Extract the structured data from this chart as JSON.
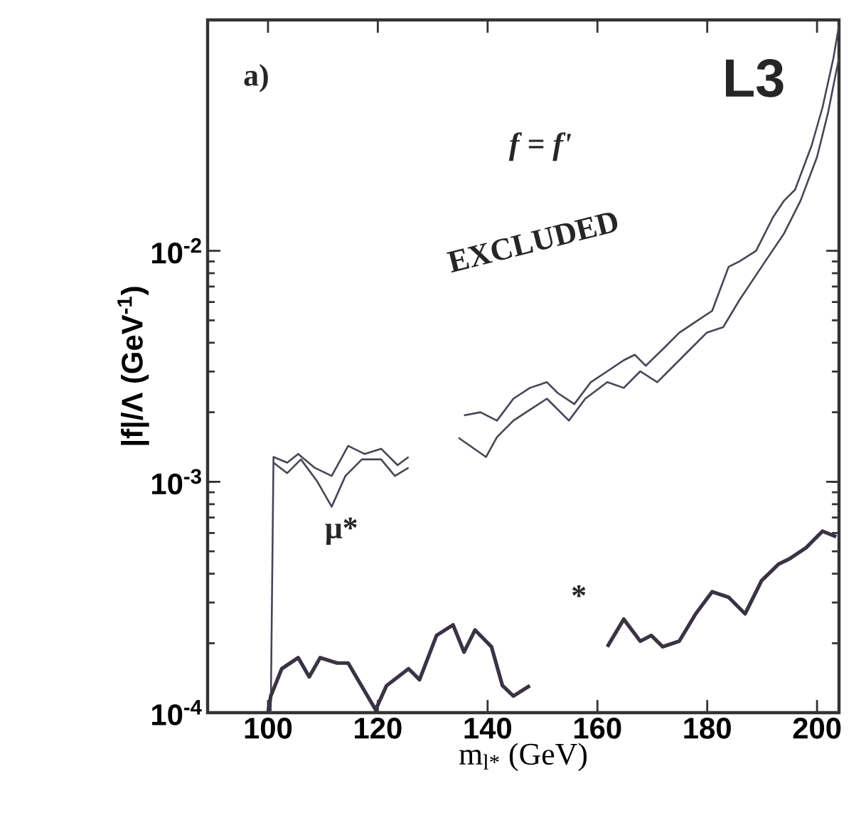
{
  "chart_data": {
    "type": "line",
    "xlabel": "m$_{l*}$ (GeV)",
    "ylabel": "|f|/Λ (GeV$^{-1}$)",
    "log": "y",
    "xlim": [
      89,
      204
    ],
    "xticks": [
      100,
      120,
      140,
      160,
      180,
      200
    ],
    "ylim": [
      0.0001,
      0.1
    ],
    "yticks": [
      {
        "value": 0.0001,
        "label": "10$^{-4}$"
      },
      {
        "value": 0.001,
        "label": "10$^{-3}$"
      },
      {
        "value": 0.01,
        "label": "10$^{-2}$"
      }
    ],
    "annotations": [
      "a)",
      "L3",
      "f = f'",
      "EXCLUDED",
      "μ*",
      "*"
    ],
    "series": [
      {
        "color": "#4a4456",
        "x": [
          100.5,
          101.0,
          103.5,
          105.5,
          108.5,
          111.6,
          114.6,
          117.6,
          120.6,
          123.6,
          125.6,
          130,
          135.7,
          138.7,
          141.7,
          144.7,
          147.7,
          150.8,
          152.8,
          155.8,
          158.8,
          161.8,
          164.8,
          166.8,
          168.8,
          171.9,
          174.9,
          177.9,
          180.9,
          183.9,
          185.9,
          188.9,
          192.0,
          194.0,
          196.0,
          199.0,
          201.0,
          203.0,
          204.0
        ],
        "values": [
          0.0001,
          0.00128,
          0.00121,
          0.00132,
          0.00115,
          0.00106,
          0.00143,
          0.00132,
          0.00139,
          0.00118,
          0.00128,
          null,
          0.00194,
          0.002,
          0.00184,
          0.00229,
          0.00255,
          0.0027,
          0.00242,
          0.00217,
          0.0027,
          0.00301,
          0.00336,
          0.00355,
          0.00318,
          0.00375,
          0.00442,
          0.00493,
          0.0055,
          0.00853,
          0.00901,
          0.01,
          0.014,
          0.0165,
          0.0184,
          0.0285,
          0.0418,
          0.0686,
          0.095
        ]
      },
      {
        "color": "#4a4456",
        "x": [
          101.0,
          103.5,
          106.0,
          109.0,
          111.6,
          114.1,
          117.1,
          120.6,
          123.1,
          125.6,
          130,
          134.7,
          139.7,
          141.7,
          144.7,
          147.7,
          150.8,
          154.8,
          157.8,
          161.8,
          164.8,
          167.8,
          170.9,
          173.9,
          176.9,
          179.9,
          182.9,
          185.9,
          189.9,
          194.0,
          197.0,
          200.0,
          202.0,
          204.0
        ],
        "values": [
          0.00121,
          0.00109,
          0.00125,
          0.001,
          0.00078,
          0.00106,
          0.00125,
          0.00125,
          0.00106,
          0.00115,
          null,
          0.00155,
          0.00128,
          0.00156,
          0.00184,
          0.00205,
          0.00229,
          0.00184,
          0.00229,
          0.0027,
          0.00255,
          0.00301,
          0.0027,
          0.00318,
          0.00375,
          0.00442,
          0.00467,
          0.00614,
          0.00853,
          0.0119,
          0.0165,
          0.0255,
          0.0396,
          0.0686
        ]
      },
      {
        "color": "#3a3344",
        "x": [
          100.0,
          100.5,
          102.5,
          105.5,
          107.5,
          109.5,
          112.6,
          114.6,
          117.6,
          119.6,
          121.6,
          125.6,
          127.6,
          130.7,
          133.7,
          135.7,
          137.7,
          140.7,
          142.7,
          144.7,
          147.7,
          152,
          161.8,
          164.8,
          167.8,
          169.8,
          171.9,
          174.9,
          177.9,
          180.9,
          183.9,
          186.9,
          189.9,
          193.0,
          195.0,
          198.0,
          201.0,
          203.5
        ],
        "values": [
          0.0001,
          0.000118,
          0.000155,
          0.000173,
          0.000143,
          0.000173,
          0.000164,
          0.000164,
          0.000124,
          0.000103,
          0.000131,
          0.000155,
          0.000139,
          0.000216,
          0.00024,
          0.000183,
          0.000228,
          0.000193,
          0.000131,
          0.000118,
          0.000131,
          null,
          0.000193,
          0.000254,
          0.000204,
          0.000216,
          0.000193,
          0.000204,
          0.000268,
          0.000334,
          0.000316,
          0.000268,
          0.000373,
          0.00044,
          0.000464,
          0.000518,
          0.000611,
          0.000578
        ]
      }
    ]
  }
}
